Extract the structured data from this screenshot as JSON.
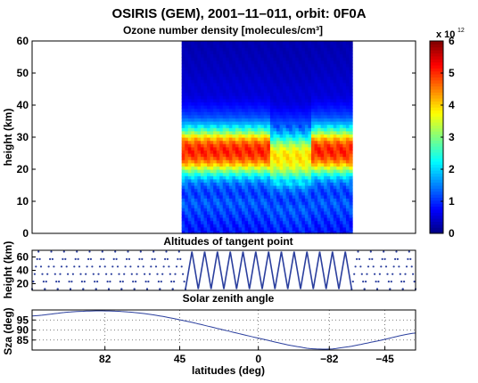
{
  "figure": {
    "title": "OSIRIS (GEM), 2001–11–011, orbit: 0F0A"
  },
  "chart_data": [
    {
      "type": "heatmap",
      "title": "Ozone number density [molecules/cm³]",
      "ylabel": "height (km)",
      "xlabel": "",
      "ylim": [
        0,
        60
      ],
      "yticks": [
        "0",
        "10",
        "20",
        "30",
        "40",
        "50",
        "60"
      ],
      "data_x_fraction_range": [
        0.39,
        0.835
      ],
      "profile_rows_km": [
        [
          0,
          0.8
        ],
        [
          2,
          0.9
        ],
        [
          4,
          1.0
        ],
        [
          6,
          1.1
        ],
        [
          8,
          1.2
        ],
        [
          10,
          1.3
        ],
        [
          12,
          1.1
        ],
        [
          14,
          1.2
        ],
        [
          16,
          1.5
        ],
        [
          18,
          2.2
        ],
        [
          20,
          3.2
        ],
        [
          22,
          4.3
        ],
        [
          24,
          4.9
        ],
        [
          26,
          5.1
        ],
        [
          28,
          4.8
        ],
        [
          30,
          4.0
        ],
        [
          32,
          2.8
        ],
        [
          34,
          1.9
        ],
        [
          36,
          1.3
        ],
        [
          38,
          1.0
        ],
        [
          40,
          0.8
        ],
        [
          42,
          0.6
        ],
        [
          44,
          0.5
        ],
        [
          46,
          0.5
        ],
        [
          48,
          0.45
        ],
        [
          50,
          0.4
        ],
        [
          54,
          0.35
        ],
        [
          58,
          0.3
        ],
        [
          60,
          0.3
        ]
      ],
      "colorbar": {
        "ticks": [
          "0",
          "1",
          "2",
          "3",
          "4",
          "5",
          "6"
        ],
        "exponent_label": "x 10",
        "exponent": "12",
        "range": [
          0,
          6
        ]
      }
    },
    {
      "type": "line",
      "title": "Altitudes of tangent point",
      "ylabel": "height (km)",
      "ylim": [
        10,
        70
      ],
      "yticks": [
        "20",
        "40",
        "60"
      ],
      "series_description": "zigzag scan sweeping 10–70 km",
      "scan_count": 30
    },
    {
      "type": "line",
      "title": "Solar zenith angle",
      "ylabel": "Sza (deg)",
      "ylim": [
        80,
        100
      ],
      "yticks": [
        "85",
        "90",
        "95"
      ],
      "xlabel": "latitudes (deg)",
      "xticks": [
        "82",
        "45",
        "0",
        "−82",
        "−45"
      ],
      "curve": [
        [
          0.0,
          97.0
        ],
        [
          0.1,
          99.0
        ],
        [
          0.2,
          99.5
        ],
        [
          0.3,
          98.0
        ],
        [
          0.4,
          94.5
        ],
        [
          0.5,
          90.0
        ],
        [
          0.6,
          85.5
        ],
        [
          0.7,
          81.5
        ],
        [
          0.75,
          80.5
        ],
        [
          0.8,
          81.0
        ],
        [
          0.9,
          84.5
        ],
        [
          1.0,
          88.5
        ]
      ]
    }
  ],
  "colors": {
    "line": "#2b3f9e",
    "grid": "#555555",
    "frame": "#000000"
  }
}
